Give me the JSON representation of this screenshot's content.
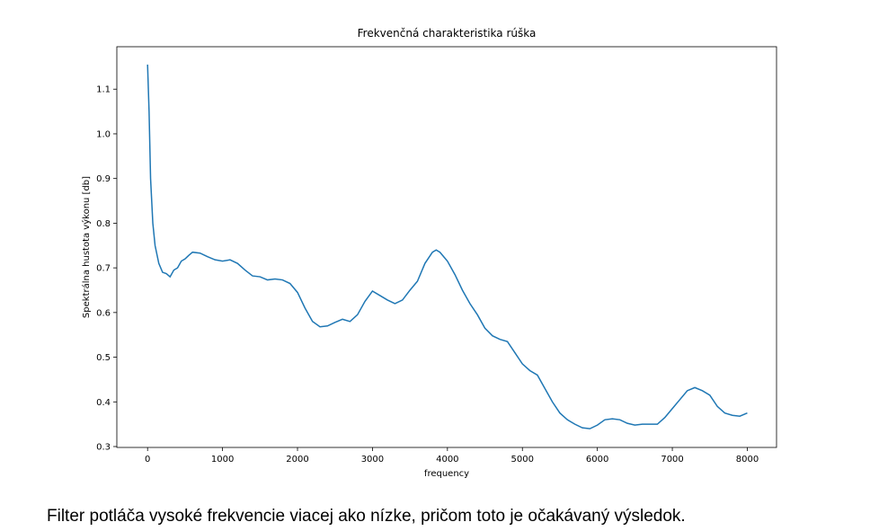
{
  "chart_data": {
    "type": "line",
    "title": "Frekvenčná charakteristika rúška",
    "x_label": "frequency",
    "y_label": "Spektrálna hustota výkonu [db]",
    "x": [
      0,
      20,
      40,
      70,
      100,
      150,
      200,
      250,
      300,
      350,
      400,
      450,
      500,
      550,
      600,
      700,
      800,
      900,
      1000,
      1100,
      1200,
      1300,
      1400,
      1500,
      1600,
      1700,
      1800,
      1900,
      2000,
      2100,
      2200,
      2300,
      2400,
      2500,
      2600,
      2700,
      2800,
      2900,
      3000,
      3100,
      3200,
      3300,
      3400,
      3500,
      3600,
      3700,
      3800,
      3850,
      3900,
      4000,
      4100,
      4200,
      4300,
      4400,
      4500,
      4600,
      4700,
      4800,
      4900,
      5000,
      5100,
      5200,
      5300,
      5400,
      5500,
      5600,
      5700,
      5800,
      5900,
      6000,
      6100,
      6200,
      6300,
      6400,
      6500,
      6600,
      6700,
      6800,
      6900,
      7000,
      7100,
      7200,
      7300,
      7400,
      7500,
      7600,
      7700,
      7800,
      7900,
      8000
    ],
    "series": [
      {
        "color": "#1f77b4",
        "values": [
          1.155,
          1.05,
          0.9,
          0.8,
          0.75,
          0.71,
          0.69,
          0.687,
          0.68,
          0.695,
          0.7,
          0.715,
          0.72,
          0.728,
          0.735,
          0.733,
          0.725,
          0.718,
          0.715,
          0.718,
          0.71,
          0.695,
          0.682,
          0.68,
          0.673,
          0.675,
          0.673,
          0.665,
          0.645,
          0.61,
          0.58,
          0.568,
          0.57,
          0.578,
          0.585,
          0.58,
          0.595,
          0.625,
          0.648,
          0.638,
          0.628,
          0.62,
          0.628,
          0.65,
          0.67,
          0.71,
          0.735,
          0.74,
          0.735,
          0.715,
          0.685,
          0.65,
          0.62,
          0.595,
          0.565,
          0.548,
          0.54,
          0.535,
          0.51,
          0.485,
          0.47,
          0.46,
          0.43,
          0.4,
          0.375,
          0.36,
          0.35,
          0.342,
          0.34,
          0.348,
          0.36,
          0.362,
          0.36,
          0.352,
          0.348,
          0.35,
          0.35,
          0.35,
          0.365,
          0.385,
          0.405,
          0.425,
          0.432,
          0.425,
          0.415,
          0.39,
          0.375,
          0.37,
          0.368,
          0.375
        ]
      }
    ],
    "xlim": [
      -410,
      8390
    ],
    "xticks": [
      0,
      1000,
      2000,
      3000,
      4000,
      5000,
      6000,
      7000,
      8000
    ],
    "ylim": [
      0.298,
      1.195
    ],
    "yticks": [
      0.3,
      0.4,
      0.5,
      0.6,
      0.7,
      0.8,
      0.9,
      {
        "value": 1.0,
        "label": "1.0"
      },
      1.1
    ]
  },
  "caption": "Filter potláča vysoké frekvencie viacej ako nízke, pričom toto je očakávaný výsledok."
}
